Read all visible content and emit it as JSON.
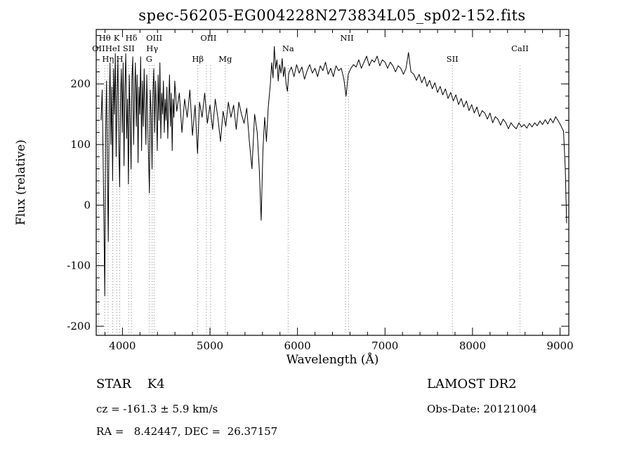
{
  "chart_data": {
    "type": "line",
    "title": "spec-56205-EG004228N273834L05_sp02-152.fits",
    "xlabel": "Wavelength (Å)",
    "ylabel": "Flux (relative)",
    "xlim": [
      3700,
      9100
    ],
    "ylim": [
      -215,
      290
    ],
    "xticks": [
      4000,
      5000,
      6000,
      7000,
      8000,
      9000
    ],
    "yticks": [
      -200,
      -100,
      0,
      100,
      200
    ],
    "x_minor_step": 200,
    "y_minor_step": 20,
    "grid": false,
    "line_color": "#000000",
    "marker_line_color": "#888888",
    "markers": [
      {
        "label": "Hθ",
        "row": 1,
        "wavelengths": [
          3798
        ]
      },
      {
        "label": "K",
        "row": 1,
        "wavelengths": [
          3934
        ]
      },
      {
        "label": "Hδ",
        "row": 1,
        "wavelengths": [
          4102
        ]
      },
      {
        "label": "OIII",
        "row": 1,
        "wavelengths": [
          4363
        ]
      },
      {
        "label": "OIII",
        "row": 1,
        "wavelengths": [
          4959,
          5007
        ]
      },
      {
        "label": "NII",
        "row": 1,
        "wavelengths": [
          6548,
          6583
        ]
      },
      {
        "label": "OII",
        "row": 2,
        "wavelengths": [
          3727
        ]
      },
      {
        "label": "HeI",
        "row": 2,
        "wavelengths": [
          3889
        ]
      },
      {
        "label": "SII",
        "row": 2,
        "wavelengths": [
          4072
        ]
      },
      {
        "label": "Hγ",
        "row": 2,
        "wavelengths": [
          4340
        ]
      },
      {
        "label": "Na",
        "row": 2,
        "wavelengths": [
          5893
        ]
      },
      {
        "label": "CaII",
        "row": 2,
        "wavelengths": [
          8542
        ]
      },
      {
        "label": "Hη",
        "row": 3,
        "wavelengths": [
          3835
        ]
      },
      {
        "label": "H",
        "row": 3,
        "wavelengths": [
          3969
        ]
      },
      {
        "label": "G",
        "row": 3,
        "wavelengths": [
          4305
        ]
      },
      {
        "label": "Hβ",
        "row": 3,
        "wavelengths": [
          4861
        ]
      },
      {
        "label": "Mg",
        "row": 3,
        "wavelengths": [
          5175
        ]
      },
      {
        "label": "SII",
        "row": 3,
        "wavelengths": [
          7770
        ]
      }
    ],
    "series": [
      {
        "name": "spectrum",
        "points": [
          [
            3755,
            140
          ],
          [
            3768,
            190
          ],
          [
            3778,
            90
          ],
          [
            3788,
            -30
          ],
          [
            3798,
            -150
          ],
          [
            3808,
            120
          ],
          [
            3818,
            205
          ],
          [
            3828,
            60
          ],
          [
            3838,
            -60
          ],
          [
            3848,
            150
          ],
          [
            3858,
            235
          ],
          [
            3868,
            100
          ],
          [
            3878,
            195
          ],
          [
            3888,
            40
          ],
          [
            3898,
            225
          ],
          [
            3908,
            150
          ],
          [
            3918,
            250
          ],
          [
            3928,
            80
          ],
          [
            3938,
            185
          ],
          [
            3948,
            240
          ],
          [
            3958,
            100
          ],
          [
            3968,
            30
          ],
          [
            3978,
            175
          ],
          [
            3988,
            225
          ],
          [
            3998,
            120
          ],
          [
            4008,
            235
          ],
          [
            4018,
            65
          ],
          [
            4028,
            195
          ],
          [
            4038,
            250
          ],
          [
            4048,
            110
          ],
          [
            4058,
            175
          ],
          [
            4068,
            35
          ],
          [
            4078,
            215
          ],
          [
            4088,
            140
          ],
          [
            4098,
            60
          ],
          [
            4108,
            205
          ],
          [
            4118,
            245
          ],
          [
            4128,
            100
          ],
          [
            4138,
            185
          ],
          [
            4148,
            235
          ],
          [
            4158,
            130
          ],
          [
            4168,
            215
          ],
          [
            4178,
            70
          ],
          [
            4188,
            195
          ],
          [
            4198,
            150
          ],
          [
            4208,
            245
          ],
          [
            4218,
            90
          ],
          [
            4228,
            205
          ],
          [
            4238,
            130
          ],
          [
            4248,
            225
          ],
          [
            4258,
            160
          ],
          [
            4268,
            100
          ],
          [
            4278,
            215
          ],
          [
            4288,
            140
          ],
          [
            4298,
            80
          ],
          [
            4308,
            20
          ],
          [
            4318,
            190
          ],
          [
            4328,
            150
          ],
          [
            4338,
            60
          ],
          [
            4348,
            185
          ],
          [
            4358,
            225
          ],
          [
            4368,
            120
          ],
          [
            4378,
            205
          ],
          [
            4388,
            160
          ],
          [
            4398,
            90
          ],
          [
            4408,
            215
          ],
          [
            4418,
            140
          ],
          [
            4428,
            235
          ],
          [
            4438,
            110
          ],
          [
            4448,
            185
          ],
          [
            4458,
            150
          ],
          [
            4468,
            205
          ],
          [
            4478,
            120
          ],
          [
            4488,
            175
          ],
          [
            4498,
            140
          ],
          [
            4508,
            195
          ],
          [
            4518,
            110
          ],
          [
            4528,
            165
          ],
          [
            4538,
            215
          ],
          [
            4548,
            130
          ],
          [
            4558,
            185
          ],
          [
            4568,
            90
          ],
          [
            4578,
            175
          ],
          [
            4588,
            145
          ],
          [
            4598,
            205
          ],
          [
            4620,
            155
          ],
          [
            4650,
            185
          ],
          [
            4680,
            120
          ],
          [
            4710,
            175
          ],
          [
            4740,
            145
          ],
          [
            4770,
            190
          ],
          [
            4800,
            115
          ],
          [
            4830,
            165
          ],
          [
            4858,
            85
          ],
          [
            4880,
            170
          ],
          [
            4910,
            145
          ],
          [
            4940,
            185
          ],
          [
            4970,
            135
          ],
          [
            5000,
            165
          ],
          [
            5030,
            125
          ],
          [
            5060,
            175
          ],
          [
            5090,
            145
          ],
          [
            5120,
            105
          ],
          [
            5150,
            155
          ],
          [
            5180,
            130
          ],
          [
            5210,
            170
          ],
          [
            5240,
            145
          ],
          [
            5270,
            165
          ],
          [
            5300,
            125
          ],
          [
            5330,
            170
          ],
          [
            5360,
            150
          ],
          [
            5390,
            135
          ],
          [
            5420,
            160
          ],
          [
            5450,
            105
          ],
          [
            5480,
            60
          ],
          [
            5510,
            150
          ],
          [
            5540,
            120
          ],
          [
            5565,
            55
          ],
          [
            5585,
            -25
          ],
          [
            5605,
            90
          ],
          [
            5625,
            145
          ],
          [
            5645,
            105
          ],
          [
            5665,
            160
          ],
          [
            5690,
            200
          ],
          [
            5705,
            235
          ],
          [
            5720,
            210
          ],
          [
            5735,
            262
          ],
          [
            5750,
            225
          ],
          [
            5765,
            240
          ],
          [
            5780,
            205
          ],
          [
            5795,
            232
          ],
          [
            5810,
            218
          ],
          [
            5825,
            242
          ],
          [
            5840,
            212
          ],
          [
            5855,
            228
          ],
          [
            5870,
            200
          ],
          [
            5885,
            188
          ],
          [
            5900,
            218
          ],
          [
            5930,
            228
          ],
          [
            5960,
            212
          ],
          [
            5990,
            232
          ],
          [
            6020,
            218
          ],
          [
            6050,
            228
          ],
          [
            6080,
            208
          ],
          [
            6110,
            222
          ],
          [
            6140,
            232
          ],
          [
            6170,
            218
          ],
          [
            6200,
            226
          ],
          [
            6230,
            212
          ],
          [
            6260,
            230
          ],
          [
            6290,
            222
          ],
          [
            6320,
            236
          ],
          [
            6350,
            216
          ],
          [
            6380,
            226
          ],
          [
            6410,
            212
          ],
          [
            6440,
            230
          ],
          [
            6470,
            222
          ],
          [
            6500,
            226
          ],
          [
            6530,
            208
          ],
          [
            6555,
            180
          ],
          [
            6580,
            216
          ],
          [
            6610,
            226
          ],
          [
            6640,
            232
          ],
          [
            6670,
            228
          ],
          [
            6700,
            240
          ],
          [
            6730,
            226
          ],
          [
            6760,
            236
          ],
          [
            6790,
            246
          ],
          [
            6820,
            230
          ],
          [
            6850,
            240
          ],
          [
            6880,
            236
          ],
          [
            6910,
            246
          ],
          [
            6940,
            230
          ],
          [
            6970,
            240
          ],
          [
            7000,
            236
          ],
          [
            7030,
            226
          ],
          [
            7060,
            236
          ],
          [
            7090,
            230
          ],
          [
            7120,
            220
          ],
          [
            7150,
            230
          ],
          [
            7180,
            226
          ],
          [
            7210,
            216
          ],
          [
            7240,
            226
          ],
          [
            7268,
            252
          ],
          [
            7296,
            220
          ],
          [
            7330,
            216
          ],
          [
            7360,
            206
          ],
          [
            7390,
            216
          ],
          [
            7420,
            202
          ],
          [
            7450,
            212
          ],
          [
            7480,
            196
          ],
          [
            7510,
            206
          ],
          [
            7540,
            192
          ],
          [
            7570,
            202
          ],
          [
            7600,
            186
          ],
          [
            7630,
            196
          ],
          [
            7660,
            182
          ],
          [
            7690,
            192
          ],
          [
            7720,
            176
          ],
          [
            7750,
            186
          ],
          [
            7780,
            172
          ],
          [
            7810,
            182
          ],
          [
            7840,
            166
          ],
          [
            7870,
            176
          ],
          [
            7900,
            162
          ],
          [
            7930,
            172
          ],
          [
            7960,
            156
          ],
          [
            7990,
            166
          ],
          [
            8020,
            152
          ],
          [
            8050,
            162
          ],
          [
            8080,
            146
          ],
          [
            8110,
            156
          ],
          [
            8140,
            152
          ],
          [
            8170,
            142
          ],
          [
            8200,
            152
          ],
          [
            8230,
            136
          ],
          [
            8260,
            146
          ],
          [
            8290,
            142
          ],
          [
            8320,
            132
          ],
          [
            8350,
            142
          ],
          [
            8380,
            136
          ],
          [
            8410,
            126
          ],
          [
            8440,
            136
          ],
          [
            8470,
            130
          ],
          [
            8500,
            126
          ],
          [
            8530,
            136
          ],
          [
            8560,
            129
          ],
          [
            8590,
            133
          ],
          [
            8620,
            127
          ],
          [
            8650,
            135
          ],
          [
            8680,
            129
          ],
          [
            8710,
            136
          ],
          [
            8740,
            131
          ],
          [
            8770,
            139
          ],
          [
            8800,
            133
          ],
          [
            8830,
            141
          ],
          [
            8860,
            134
          ],
          [
            8890,
            143
          ],
          [
            8920,
            136
          ],
          [
            8950,
            146
          ],
          [
            8980,
            139
          ],
          [
            9010,
            131
          ],
          [
            9040,
            122
          ],
          [
            9060,
            60
          ],
          [
            9075,
            -30
          ]
        ]
      }
    ]
  },
  "annotations": {
    "classification": "STAR    K4",
    "survey": "LAMOST DR2",
    "cz": "cz = -161.3 ± 5.9 km/s",
    "obs_date": "Obs-Date: 20121004",
    "coords": "RA =   8.42447, DEC =  26.37157"
  }
}
